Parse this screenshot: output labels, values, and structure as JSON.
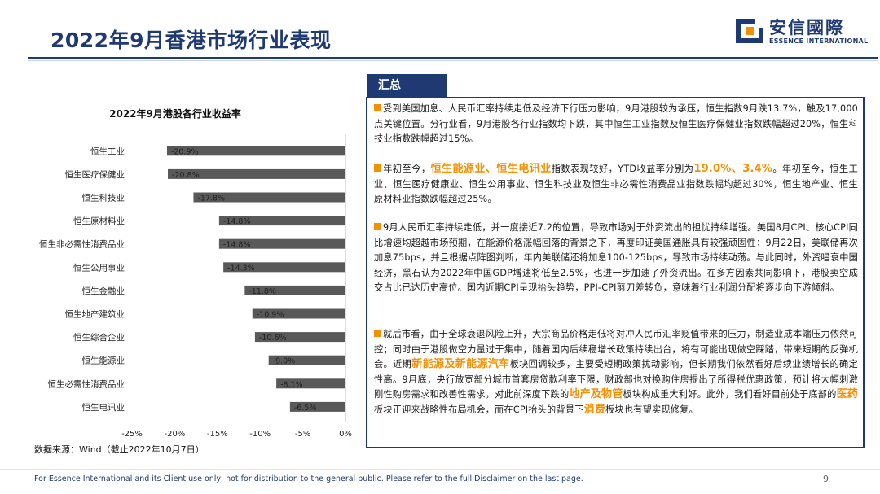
{
  "header": {
    "title": "2022年9月香港市场行业表现",
    "logo_cn": "安信國際",
    "logo_en": "ESSENCE INTERNATIONAL"
  },
  "colors": {
    "brand": "#1f3a73",
    "accent": "#f39000",
    "bar": "#595959"
  },
  "chart_data": {
    "type": "bar",
    "orientation": "horizontal",
    "title": "2022年9月港股各行业收益率",
    "categories": [
      "恒生工业",
      "恒生医疗保健业",
      "恒生科技业",
      "恒生原材料业",
      "恒生非必需性消费品业",
      "恒生公用事业",
      "恒生金融业",
      "恒生地产建筑业",
      "恒生综合企业",
      "恒生能源业",
      "恒生必需性消费品业",
      "恒生电讯业"
    ],
    "values": [
      -20.9,
      -20.8,
      -17.8,
      -14.8,
      -14.8,
      -14.3,
      -11.8,
      -10.9,
      -10.6,
      -9.0,
      -8.1,
      -6.5
    ],
    "value_labels": [
      "-20.9%",
      "-20.8%",
      "-17.8%",
      "-14.8%",
      "-14.8%",
      "-14.3%",
      "-11.8%",
      "-10.9%",
      "-10.6%",
      "-9.0%",
      "-8.1%",
      "-6.5%"
    ],
    "xlim": [
      -25,
      0
    ],
    "xticks": [
      -25,
      -20,
      -15,
      -10,
      -5,
      0
    ],
    "xtick_labels": [
      "-25%",
      "-20%",
      "-15%",
      "-10%",
      "-5%",
      "0%"
    ],
    "xlabel": "",
    "ylabel": "",
    "legend": "none",
    "grid": false
  },
  "source": "数据来源：Wind（截止2022年10月7日）",
  "summary": {
    "tab_label": "汇总",
    "p1": "受到美国加息、人民币汇率持续走低及经济下行压力影响，9月港股较为承压，恒生指数9月跌13.7%，触及17,000点关键位置。分行业看，9月港股各行业指数均下跌，其中恒生工业指数及恒生医疗保健业指数跌幅超过20%，恒生科技业指数跌幅超过15%。",
    "p2_a": "年初至今，",
    "p2_hl1": "恒生能源业、恒生电讯业",
    "p2_b": "指数表现较好，YTD收益率分别为",
    "p2_hl2": "19.0%、3.4%",
    "p2_c": "。年初至今，恒生工业、恒生医疗健康业、恒生公用事业、恒生科技业及恒生非必需性消费品业指数跌幅均超过30%，恒生地产业、恒生原材料业指数跌幅超过25%。",
    "p3": "9月人民币汇率持续走低，并一度接近7.2的位置，导致市场对于外资流出的担忧持续增强。美国8月CPI、核心CPI同比增速均超越市场预期，在能源价格涨幅回落的背景之下，再度印证美国通胀具有较强顽固性；9月22日，美联储再次加息75bps，并且根据点阵图判断，年内美联储还将加息100-125bps，导致市场持续动荡。与此同时，外资唱衰中国经济，黑石认为2022年中国GDP增速将低至2.5%，也进一步加速了外资流出。在多方因素共同影响下，港股卖空成交占比已达历史高位。国内近期CPI呈现抬头趋势，PPI-CPI剪刀差转负，意味着行业利润分配将逐步向下游倾斜。",
    "p4_a": "就后市看，由于全球衰退风险上升，大宗商品价格走低将对冲人民币汇率贬值带来的压力，制造业成本端压力依然可控；同时由于港股做空力量过于集中，随着国内后续稳增长政策持续出台，将有可能出现做空踩踏，带来短期的反弹机会。近期",
    "p4_hl1": "新能源及新能源汽车",
    "p4_b": "板块回调较多，主要受短期政策扰动影响，但长期我们依然看好后续业绩增长的确定性高。9月底，央行放宽部分城市首套房贷款利率下限，财政部也对换购住房提出了所得税优惠政策，预计将大幅刺激刚性购房需求和改善性需求，对此前深度下跌的",
    "p4_hl2": "地产及物管",
    "p4_c": "板块构成重大利好。此外，我们看好目前处于底部的",
    "p4_hl3": "医药",
    "p4_d": "板块正迎来战略性布局机会，而在CPI抬头的背景下",
    "p4_hl4": "消费",
    "p4_e": "板块也有望实现修复。"
  },
  "footer": {
    "disclaimer": "For Essence International and its Client use only, not for distribution to the general public. Please refer to the full Disclaimer on the last page.",
    "page_number": "9"
  }
}
